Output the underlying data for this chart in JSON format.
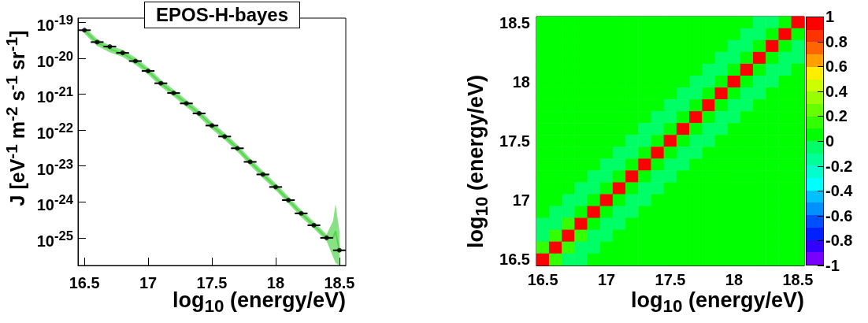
{
  "chart_data": [
    {
      "type": "line",
      "title": "EPOS-H-bayes",
      "xlabel": "log$_{10}$ (energy/eV)",
      "ylabel": "J [eV$^{-1}$ m$^{-2}$ s$^{-1}$ sr$^{-1}$]",
      "log": "y",
      "xlim": [
        16.45,
        18.55
      ],
      "xticks": [
        16.5,
        17,
        17.5,
        18,
        18.5
      ],
      "ylim": [
        1.7e-26,
        1.3e-19
      ],
      "yticks": [
        {
          "value": 1e-25,
          "label": "10$^{-25}$"
        },
        {
          "value": 1e-24,
          "label": "10$^{-24}$"
        },
        {
          "value": 1e-23,
          "label": "10$^{-23}$"
        },
        {
          "value": 1e-22,
          "label": "10$^{-22}$"
        },
        {
          "value": 1e-21,
          "label": "10$^{-21}$"
        },
        {
          "value": 1e-20,
          "label": "10$^{-20}$"
        },
        {
          "value": 1e-19,
          "label": "10$^{-19}$"
        }
      ],
      "series": [
        {
          "type": "line",
          "marker": "none",
          "color": "#55d44f",
          "x": [
            16.5,
            16.6,
            16.7,
            16.8,
            16.9,
            17.0,
            17.1,
            17.2,
            17.3,
            17.4,
            17.5,
            17.6,
            17.7,
            17.8,
            17.9,
            18.0,
            18.1,
            18.2,
            18.3,
            18.4,
            18.45,
            18.47,
            18.5
          ],
          "values": [
            6e-20,
            2.7e-20,
            1.8e-20,
            1.35e-20,
            8.3e-21,
            4.4e-21,
            2e-21,
            1.07e-21,
            5.5e-22,
            2.9e-22,
            1.33e-22,
            6.6e-23,
            3.1e-23,
            1.3e-23,
            5.8e-24,
            2.6e-24,
            1.12e-24,
            4.8e-25,
            2.24e-25,
            1e-25,
            1e-25,
            1.5e-25,
            4.5e-26
          ],
          "lower": [
            4.8e-20,
            2.2e-20,
            1.45e-20,
            1.08e-20,
            6.6e-21,
            3.5e-21,
            1.6e-21,
            8.6e-22,
            4.4e-22,
            2.3e-22,
            1.06e-22,
            5.3e-23,
            2.5e-23,
            1.04e-23,
            4.6e-24,
            2.1e-24,
            9e-25,
            3.8e-25,
            1.8e-25,
            8e-26,
            3e-26,
            2e-26,
            1.7e-26
          ],
          "upper": [
            7.5e-20,
            3.4e-20,
            2.25e-20,
            1.7e-20,
            1.04e-20,
            5.5e-21,
            2.5e-21,
            1.34e-21,
            6.9e-22,
            3.6e-22,
            1.66e-22,
            8.3e-23,
            3.9e-23,
            1.63e-23,
            7.3e-24,
            3.3e-24,
            1.4e-24,
            6e-25,
            2.8e-25,
            1.25e-25,
            3e-25,
            8.7e-25,
            1.5e-25
          ]
        },
        {
          "type": "scatter",
          "marker": "circle",
          "color": "#000000",
          "x": [
            16.5,
            16.6,
            16.7,
            16.8,
            16.9,
            17.0,
            17.1,
            17.2,
            17.3,
            17.4,
            17.5,
            17.6,
            17.7,
            17.8,
            17.9,
            18.0,
            18.1,
            18.2,
            18.3,
            18.4,
            18.5
          ],
          "values": [
            6e-20,
            2.8e-20,
            2.1e-20,
            1.4e-20,
            8.3e-21,
            4.4e-21,
            2e-21,
            1.07e-21,
            5.5e-22,
            2.9e-22,
            1.33e-22,
            6.6e-23,
            3.1e-23,
            1.3e-23,
            5.8e-24,
            2.6e-24,
            1.12e-24,
            4.8e-25,
            2.24e-25,
            1e-25,
            4.5e-26
          ],
          "xerrors": [
            0.05,
            0.05,
            0.05,
            0.05,
            0.05,
            0.05,
            0.05,
            0.05,
            0.05,
            0.05,
            0.05,
            0.05,
            0.05,
            0.05,
            0.05,
            0.05,
            0.05,
            0.05,
            0.05,
            0.05,
            0.05
          ]
        }
      ]
    },
    {
      "type": "heatmap",
      "xlabel": "log$_{10}$ (energy/eV)",
      "ylabel": "log$_{10}$ (energy/eV)",
      "categories": [
        "16.5",
        null,
        null,
        null,
        null,
        "17",
        null,
        null,
        null,
        null,
        "17.5",
        null,
        null,
        null,
        null,
        "18",
        null,
        null,
        null,
        null,
        "18.5"
      ],
      "y_categories": [
        "18.5",
        null,
        null,
        null,
        null,
        "18",
        null,
        null,
        null,
        null,
        "17.5",
        null,
        null,
        null,
        null,
        "17",
        null,
        null,
        null,
        null,
        "16.5"
      ],
      "clim": [
        -1,
        1
      ],
      "cticks": [
        -1,
        -0.8,
        -0.6,
        -0.4,
        -0.2,
        0,
        0.2,
        0.4,
        0.6,
        0.8,
        1
      ],
      "colors": [
        "#7700ff",
        "#3300ff",
        "#0020ff",
        "#0050ff",
        "#0090ff",
        "#00c0ff",
        "#00ffff",
        "#00ffcc",
        "#00ff99",
        "#00ff66",
        "#00ff00",
        "#33ff00",
        "#66ff00",
        "#99ff00",
        "#ccff00",
        "#ffee00",
        "#ffa000",
        "#ff6600",
        "#ff3300",
        "#ff0000"
      ],
      "cells": [
        [
          0,
          0,
          0,
          0,
          0,
          0,
          0,
          0,
          0,
          0,
          0,
          0,
          0,
          0,
          0,
          0,
          0,
          -0.05,
          -0.05,
          0.05,
          1
        ],
        [
          0,
          0,
          0,
          0,
          0,
          0,
          0,
          0,
          0,
          0,
          0,
          0,
          0,
          0,
          0,
          0,
          -0.05,
          -0.05,
          0.05,
          1,
          0.05
        ],
        [
          0,
          0,
          0,
          0,
          0,
          0,
          0,
          0,
          0,
          0,
          0,
          0,
          0,
          0,
          0,
          -0.05,
          -0.05,
          0.05,
          1,
          0.05,
          -0.05
        ],
        [
          0,
          0,
          0,
          0,
          0,
          0,
          0,
          0,
          0,
          0,
          0,
          0,
          0,
          0,
          -0.05,
          -0.05,
          0.05,
          1,
          0.05,
          -0.05,
          -0.05
        ],
        [
          0,
          0,
          0,
          0,
          0,
          0,
          0,
          0,
          0,
          0,
          0,
          0,
          0,
          -0.05,
          -0.05,
          0.05,
          1,
          0.05,
          -0.05,
          -0.05,
          0
        ],
        [
          0,
          0,
          0,
          0,
          0,
          0,
          0,
          0,
          0,
          0,
          0,
          0,
          -0.05,
          -0.05,
          0.05,
          1,
          0.05,
          -0.05,
          -0.05,
          0,
          0
        ],
        [
          0,
          0,
          0,
          0,
          0,
          0,
          0,
          0,
          0,
          0,
          0,
          -0.05,
          -0.05,
          0.05,
          1,
          0.05,
          -0.05,
          -0.05,
          0,
          0,
          0
        ],
        [
          0,
          0,
          0,
          0,
          0,
          0,
          0,
          0,
          0,
          0,
          -0.05,
          -0.05,
          0.05,
          1,
          0.05,
          -0.05,
          -0.05,
          0,
          0,
          0,
          0
        ],
        [
          0,
          0,
          0,
          0,
          0,
          0,
          0,
          0,
          0,
          -0.05,
          -0.05,
          0.05,
          1,
          0.05,
          -0.05,
          -0.05,
          0,
          0,
          0,
          0,
          0
        ],
        [
          0,
          0,
          0,
          0,
          0,
          0,
          0,
          0,
          -0.05,
          -0.05,
          0.05,
          1,
          0.05,
          -0.05,
          -0.05,
          0,
          0,
          0,
          0,
          0,
          0
        ],
        [
          0,
          0,
          0,
          0,
          0,
          0,
          0,
          -0.05,
          -0.05,
          0.05,
          1,
          0.05,
          -0.05,
          -0.05,
          0,
          0,
          0,
          0,
          0,
          0,
          0
        ],
        [
          0,
          0,
          0,
          0,
          0,
          0,
          -0.05,
          -0.05,
          0.05,
          1,
          0.05,
          -0.05,
          -0.05,
          0,
          0,
          0,
          0,
          0,
          0,
          0,
          0
        ],
        [
          0,
          0,
          0,
          0,
          0,
          -0.05,
          -0.05,
          0.05,
          1,
          0.05,
          -0.05,
          -0.05,
          0,
          0,
          0,
          0,
          0,
          0,
          0,
          0,
          0
        ],
        [
          0,
          0,
          0,
          0,
          -0.05,
          -0.05,
          0.05,
          1,
          0.05,
          -0.05,
          -0.05,
          0,
          0,
          0,
          0,
          0,
          0,
          0,
          0,
          0,
          0
        ],
        [
          0,
          0,
          0,
          -0.05,
          -0.05,
          0.05,
          1,
          0.05,
          -0.05,
          -0.05,
          0,
          0,
          0,
          0,
          0,
          0,
          0,
          0,
          0,
          0,
          0
        ],
        [
          0,
          0,
          -0.05,
          -0.05,
          0.05,
          1,
          0.05,
          -0.05,
          -0.05,
          0,
          0,
          0,
          0,
          0,
          0,
          0,
          0,
          0,
          0,
          0,
          0
        ],
        [
          0,
          -0.05,
          -0.05,
          0.05,
          1,
          0.05,
          -0.05,
          -0.05,
          0,
          0,
          0,
          0,
          0,
          0,
          0,
          0,
          0,
          0,
          0,
          0,
          0
        ],
        [
          -0.05,
          -0.05,
          0.15,
          1,
          0.05,
          -0.05,
          -0.05,
          0,
          0,
          0,
          0,
          0,
          0,
          0,
          0,
          0,
          0,
          0,
          0,
          0,
          0
        ],
        [
          -0.05,
          0.15,
          1,
          0.15,
          -0.05,
          -0.05,
          0,
          0,
          0,
          0,
          0,
          0,
          0,
          0,
          0,
          0,
          0,
          0,
          0,
          0,
          0
        ],
        [
          0.15,
          1,
          0.15,
          -0.05,
          -0.05,
          0,
          0,
          0,
          0,
          0,
          0,
          0,
          0,
          0,
          0,
          0,
          0,
          0,
          0,
          0,
          0
        ],
        [
          1,
          0.15,
          -0.05,
          -0.05,
          0,
          0,
          0,
          0,
          0,
          0,
          0,
          0,
          0,
          0,
          0,
          0,
          0,
          0,
          0,
          0,
          0
        ]
      ]
    }
  ]
}
